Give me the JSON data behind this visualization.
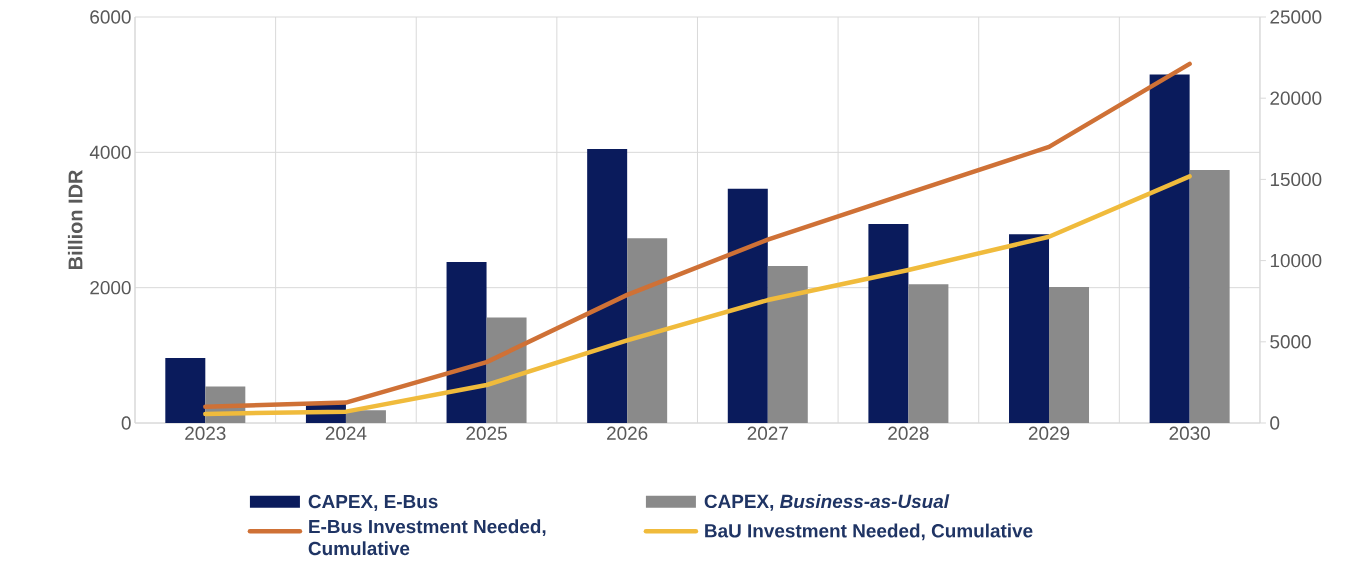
{
  "chart_data": {
    "type": "bar",
    "ylabel": "Billion IDR",
    "categories": [
      "2023",
      "2024",
      "2025",
      "2026",
      "2027",
      "2028",
      "2029",
      "2030"
    ],
    "series": [
      {
        "name": "CAPEX, E-Bus",
        "color": "#0a1b5c",
        "values": [
          960,
          280,
          2380,
          4050,
          3460,
          2940,
          2790,
          5150
        ]
      },
      {
        "name": "CAPEX, *Business-as-Usual*",
        "color": "#8a8a8a",
        "values": [
          540,
          190,
          1560,
          2730,
          2320,
          2050,
          2010,
          3740
        ]
      },
      {
        "name": "E-Bus Investment Needed, Cumulative",
        "type": "line",
        "axis": "y2",
        "color": "#cf7136",
        "values": [
          1000,
          1260,
          3750,
          7890,
          11290,
          14160,
          17000,
          22110
        ]
      },
      {
        "name": "BaU Investment Needed, Cumulative",
        "type": "line",
        "axis": "y2",
        "color": "#f0bb3c",
        "values": [
          560,
          700,
          2340,
          5090,
          7570,
          9420,
          11470,
          15190
        ]
      }
    ],
    "ylim": [
      0,
      6000
    ],
    "yticks": [
      0,
      2000,
      4000,
      6000
    ],
    "y2lim": [
      0,
      25000
    ],
    "y2ticks": [
      0,
      5000,
      10000,
      15000,
      20000,
      25000
    ],
    "grid": true,
    "legend": "bottom"
  }
}
